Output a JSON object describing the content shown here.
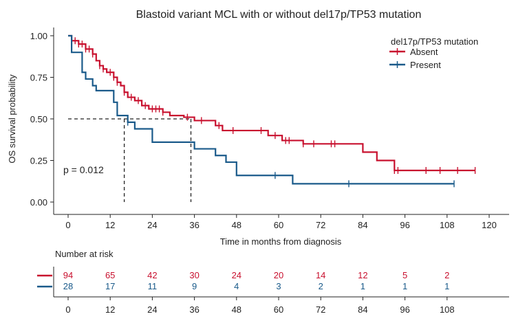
{
  "chart_data": {
    "type": "line",
    "title": "Blastoid variant MCL with or without del17p/TP53 mutation",
    "xlabel": "Time in months from diagnosis",
    "ylabel": "OS survival probability",
    "xlim": [
      0,
      120
    ],
    "ylim": [
      0,
      1
    ],
    "x_ticks": [
      "0",
      "12",
      "24",
      "36",
      "48",
      "60",
      "72",
      "84",
      "96",
      "108",
      "120"
    ],
    "y_ticks": [
      "0.00",
      "0.25",
      "0.50",
      "0.75",
      "1.00"
    ],
    "grid": false,
    "legend": {
      "title": "del17p/TP53 mutation",
      "position": "top-right"
    },
    "annotation": "p = 0.012",
    "median_survival": [
      {
        "series": "Present",
        "x": 16,
        "y": 0.5
      },
      {
        "series": "Absent",
        "x": 35,
        "y": 0.5
      }
    ],
    "series": [
      {
        "name": "Absent",
        "color": "#c8102e",
        "steps": [
          [
            0,
            1.0
          ],
          [
            1,
            0.97
          ],
          [
            3,
            0.95
          ],
          [
            5,
            0.92
          ],
          [
            7,
            0.89
          ],
          [
            8,
            0.85
          ],
          [
            9,
            0.82
          ],
          [
            10,
            0.8
          ],
          [
            11,
            0.78
          ],
          [
            13,
            0.75
          ],
          [
            14,
            0.72
          ],
          [
            15,
            0.7
          ],
          [
            16,
            0.66
          ],
          [
            17,
            0.63
          ],
          [
            19,
            0.61
          ],
          [
            21,
            0.58
          ],
          [
            23,
            0.56
          ],
          [
            27,
            0.54
          ],
          [
            29,
            0.52
          ],
          [
            33,
            0.51
          ],
          [
            36,
            0.49
          ],
          [
            42,
            0.46
          ],
          [
            44,
            0.43
          ],
          [
            57,
            0.4
          ],
          [
            61,
            0.37
          ],
          [
            67,
            0.35
          ],
          [
            75,
            0.35
          ],
          [
            84,
            0.3
          ],
          [
            88,
            0.25
          ],
          [
            93,
            0.19
          ],
          [
            116,
            0.19
          ]
        ],
        "censor": [
          2,
          3,
          4,
          5,
          6,
          7,
          9,
          10,
          12,
          13,
          14,
          16,
          18,
          20,
          22,
          24,
          25,
          26,
          27,
          34,
          38,
          43,
          47,
          55,
          59,
          62,
          63,
          67,
          70,
          75,
          76,
          93,
          94,
          102,
          106,
          111,
          116
        ]
      },
      {
        "name": "Present",
        "color": "#1a5a8a",
        "steps": [
          [
            0,
            1.0
          ],
          [
            1,
            0.9
          ],
          [
            4,
            0.78
          ],
          [
            5,
            0.74
          ],
          [
            7,
            0.7
          ],
          [
            8,
            0.67
          ],
          [
            13,
            0.6
          ],
          [
            14,
            0.52
          ],
          [
            17,
            0.48
          ],
          [
            19,
            0.44
          ],
          [
            24,
            0.36
          ],
          [
            36,
            0.32
          ],
          [
            42,
            0.28
          ],
          [
            45,
            0.24
          ],
          [
            48,
            0.16
          ],
          [
            64,
            0.11
          ],
          [
            110,
            0.11
          ]
        ],
        "censor": [
          17,
          59,
          80,
          110
        ]
      }
    ]
  },
  "risk_table": {
    "title": "Number at risk",
    "times": [
      "0",
      "12",
      "24",
      "36",
      "48",
      "60",
      "72",
      "84",
      "96",
      "108"
    ],
    "rows": [
      {
        "series": "Absent",
        "color": "#c8102e",
        "counts": [
          "94",
          "65",
          "42",
          "30",
          "24",
          "20",
          "14",
          "12",
          "5",
          "2"
        ]
      },
      {
        "series": "Present",
        "color": "#1a5a8a",
        "counts": [
          "28",
          "17",
          "11",
          "9",
          "4",
          "3",
          "2",
          "1",
          "1",
          "1"
        ]
      }
    ]
  }
}
